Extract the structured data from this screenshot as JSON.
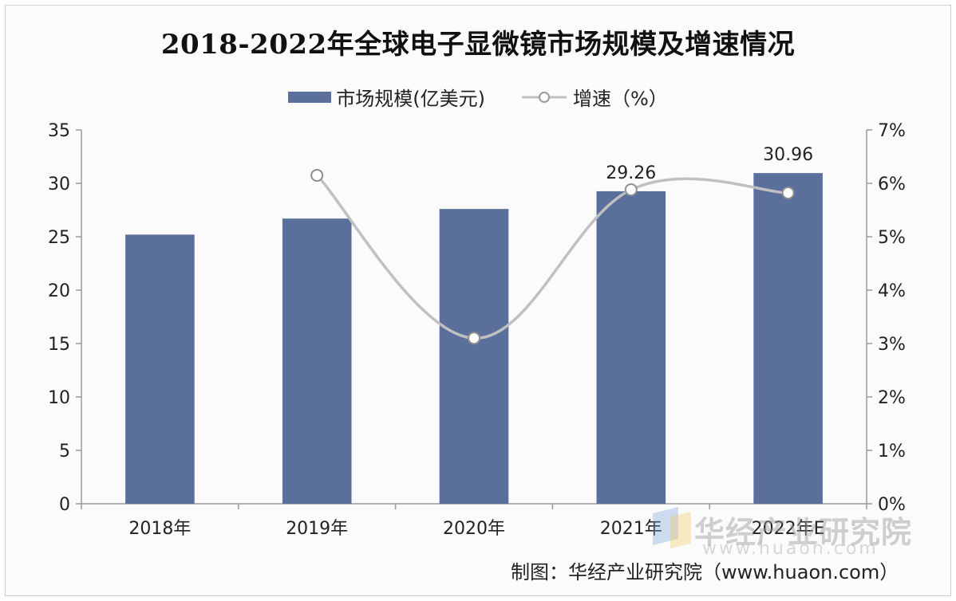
{
  "title": "2018-2022年全球电子显微镜市场规模及增速情况",
  "colors": {
    "bar": "#5b6f9c",
    "line": "#c0c0c0",
    "axis": "#9a9a9a"
  },
  "source": "制图：华经产业研究院（www.huaon.com）",
  "watermark": {
    "text": "华经产业研究院",
    "sub": "www.huaon.com"
  },
  "chart_data": {
    "type": "bar",
    "categories": [
      "2018年",
      "2019年",
      "2020年",
      "2021年",
      "2022年E"
    ],
    "series": [
      {
        "name": "市场规模(亿美元)",
        "type": "bar",
        "axis": "left",
        "values": [
          25.2,
          26.7,
          27.6,
          29.26,
          30.96
        ],
        "data_labels": [
          "",
          "",
          "",
          "29.26",
          "30.96"
        ]
      },
      {
        "name": "增速（%）",
        "type": "line",
        "axis": "right",
        "values": [
          null,
          6.15,
          3.1,
          5.88,
          5.82
        ]
      }
    ],
    "left_axis": {
      "min": 0,
      "max": 35,
      "step": 5,
      "ticks": [
        "0",
        "5",
        "10",
        "15",
        "20",
        "25",
        "30",
        "35"
      ]
    },
    "right_axis": {
      "min": 0,
      "max": 7,
      "step": 1,
      "ticks": [
        "0%",
        "1%",
        "2%",
        "3%",
        "4%",
        "5%",
        "6%",
        "7%"
      ]
    },
    "legend_position": "top-center",
    "grid": false
  }
}
